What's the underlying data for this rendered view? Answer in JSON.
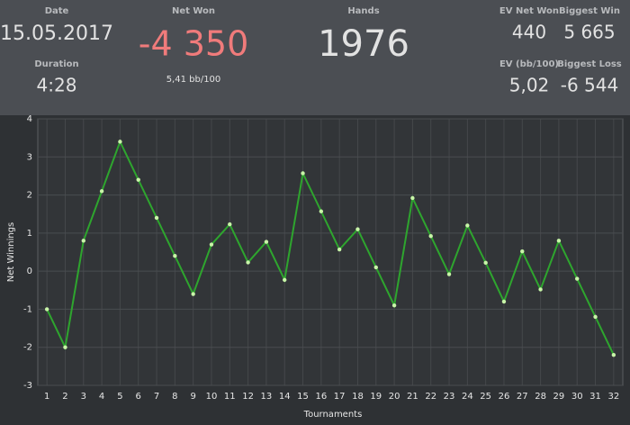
{
  "stats": {
    "date_label": "Date",
    "date": "15.05.2017",
    "duration_label": "Duration",
    "duration": "4:28",
    "net_won_label": "Net Won",
    "net_won": "-4 350",
    "bb_per_100": "5,41 bb/100",
    "hands_label": "Hands",
    "hands": "1976",
    "ev_net_won_label": "EV Net Won",
    "ev_net_won": "440",
    "biggest_win_label": "Biggest Win",
    "biggest_win": "5 665",
    "ev_bb_label": "EV (bb/100)",
    "ev_bb": "5,02",
    "biggest_loss_label": "Biggest Loss",
    "biggest_loss": "-6 544"
  },
  "chart_data": {
    "type": "line",
    "x_label": "Tournaments",
    "y_label": "Net Winnings",
    "categories": [
      "1",
      "2",
      "3",
      "4",
      "5",
      "6",
      "7",
      "8",
      "9",
      "10",
      "11",
      "12",
      "13",
      "14",
      "15",
      "16",
      "17",
      "18",
      "19",
      "20",
      "21",
      "22",
      "23",
      "24",
      "25",
      "26",
      "27",
      "28",
      "29",
      "30",
      "31",
      "32"
    ],
    "values": [
      -1.0,
      -2.0,
      0.8,
      2.1,
      3.4,
      2.4,
      1.4,
      0.4,
      -0.6,
      0.7,
      1.23,
      0.23,
      0.77,
      -0.23,
      2.57,
      1.57,
      0.57,
      1.1,
      0.1,
      -0.9,
      1.92,
      0.92,
      -0.08,
      1.2,
      0.22,
      -0.8,
      0.52,
      -0.48,
      0.8,
      -0.2,
      -1.2,
      -2.2
    ],
    "color": "#2ea52e",
    "ylim": [
      -3,
      4
    ],
    "yticks": [
      -3,
      -2,
      -1,
      0,
      1,
      2,
      3,
      4
    ],
    "grid": true
  }
}
